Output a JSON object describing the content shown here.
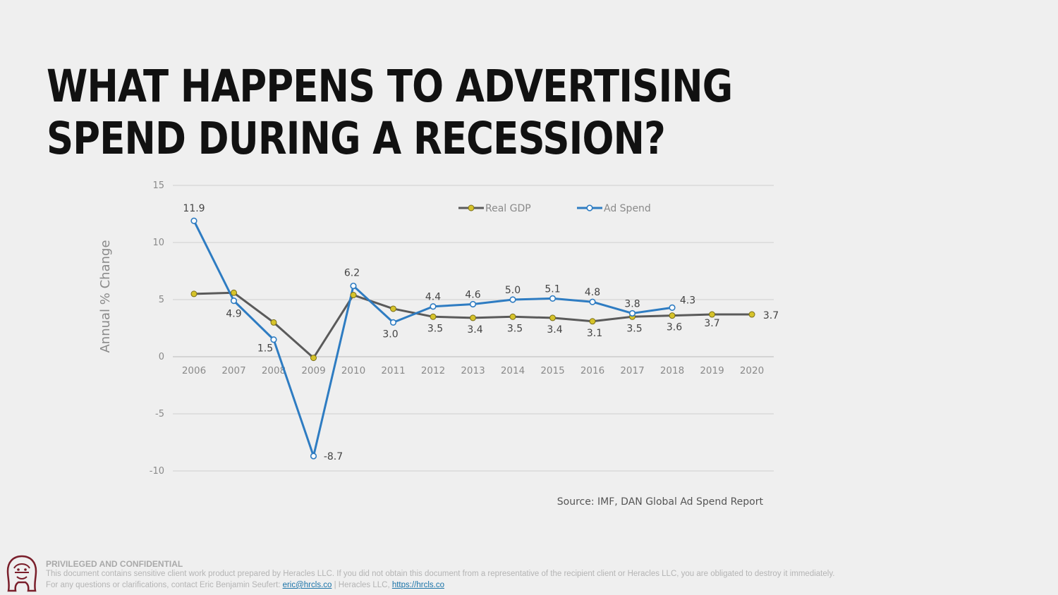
{
  "slide": {
    "title": "WHAT HAPPENS TO ADVERTISING SPEND DURING A RECESSION?"
  },
  "footer": {
    "heading": "PRIVILEGED AND CONFIDENTIAL",
    "line1": "This document contains sensitive client work product prepared by Heracles LLC. If you did not obtain this document from a representative of the recipient client or Heracles LLC, you are obligated to destroy it immediately.",
    "line2_prefix": "For any questions or clarifications, contact Eric Benjamin Seufert: ",
    "email": "eric@hrcls.co",
    "line2_mid": " | Heracles LLC, ",
    "url": "https://hrcls.co"
  },
  "chart_data": {
    "type": "line",
    "title": "",
    "xlabel": "",
    "ylabel": "Annual % Change",
    "source": "Source: IMF, DAN Global Ad Spend Report",
    "ylim": [
      -10,
      15
    ],
    "yticks": [
      -10,
      -5,
      0,
      5,
      10,
      15
    ],
    "x": [
      "2006",
      "2007",
      "2008",
      "2009",
      "2010",
      "2011",
      "2012",
      "2013",
      "2014",
      "2015",
      "2016",
      "2017",
      "2018",
      "2019",
      "2020"
    ],
    "legend_position": "top-right",
    "grid": true,
    "series": [
      {
        "name": "Real GDP",
        "color": "#5a5a5a",
        "marker_color": "#d6c32a",
        "values": [
          5.5,
          5.6,
          3.0,
          -0.1,
          5.4,
          4.2,
          3.5,
          3.4,
          3.5,
          3.4,
          3.1,
          3.5,
          3.6,
          3.7,
          3.7
        ],
        "labels": [
          "",
          "",
          "",
          "",
          "",
          "",
          "3.5",
          "3.4",
          "3.5",
          "3.4",
          "3.1",
          "3.5",
          "3.6",
          "3.7",
          "3.7"
        ]
      },
      {
        "name": "Ad Spend",
        "color": "#2e7cc2",
        "marker_color": "#ffffff",
        "values": [
          11.9,
          4.9,
          1.5,
          -8.7,
          6.2,
          3.0,
          4.4,
          4.6,
          5.0,
          5.1,
          4.8,
          3.8,
          4.3,
          null,
          null
        ],
        "labels": [
          "11.9",
          "4.9",
          "1.5",
          "-8.7",
          "6.2",
          "3.0",
          "4.4",
          "4.6",
          "5.0",
          "5.1",
          "4.8",
          "3.8",
          "4.3",
          "",
          ""
        ]
      }
    ]
  }
}
